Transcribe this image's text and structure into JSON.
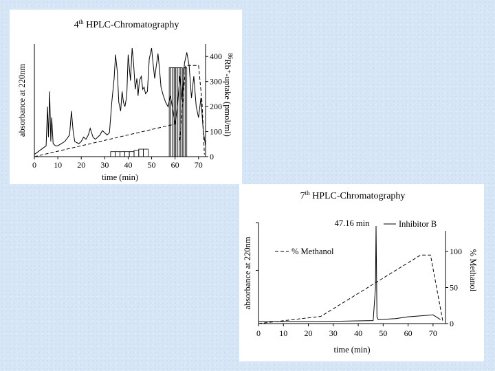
{
  "chart_data": [
    {
      "type": "line",
      "title_main": "HPLC-Chromatography",
      "title_sup": "th",
      "title_num": "4",
      "xlabel": "time (min)",
      "ylabel": "absorbance at  220nm",
      "y2label": "Rb⁺-uptake (pmol/ml)",
      "y2label_sup": "86",
      "xlim": [
        0,
        73
      ],
      "y2lim": [
        0,
        450
      ],
      "x_ticks": [
        "0",
        "10",
        "20",
        "30",
        "40",
        "50",
        "60",
        "70"
      ],
      "y2_ticks": [
        "0",
        "100",
        "200",
        "300",
        "400"
      ],
      "series": [
        {
          "role": "absorbance",
          "x": [
            0,
            5,
            5.6,
            6,
            6.5,
            7,
            7.4,
            8,
            9,
            10,
            13,
            15,
            15.8,
            16.5,
            17.2,
            18,
            19,
            20,
            21,
            22,
            23,
            23.8,
            25,
            26,
            27,
            28,
            29,
            30,
            31,
            32,
            33,
            34,
            34.6,
            35.4,
            36,
            36.8,
            37.4,
            38,
            38.6,
            39.4,
            40,
            41,
            41.7,
            42.3,
            43,
            43.7,
            44.2,
            44.8,
            45.6,
            46.2,
            46.8,
            47.4,
            48.2,
            49,
            50,
            50.5,
            51.3,
            52,
            52.7,
            53.4,
            54,
            55,
            56,
            57,
            58,
            59,
            60,
            61,
            62,
            63,
            64,
            65,
            66,
            67,
            68,
            69,
            70,
            71,
            72,
            73
          ],
          "y": [
            0.02,
            0.1,
            0.46,
            0.18,
            0.6,
            0.14,
            0.36,
            0.12,
            0.1,
            0.1,
            0.14,
            0.2,
            0.42,
            0.24,
            0.14,
            0.13,
            0.12,
            0.14,
            0.18,
            0.16,
            0.2,
            0.26,
            0.18,
            0.16,
            0.18,
            0.2,
            0.24,
            0.22,
            0.2,
            0.22,
            0.5,
            0.72,
            0.94,
            0.78,
            0.5,
            0.42,
            0.6,
            0.5,
            0.46,
            0.56,
            0.94,
            0.7,
            1.0,
            0.86,
            0.62,
            0.72,
            0.56,
            0.7,
            0.74,
            0.62,
            0.64,
            0.58,
            0.6,
            0.9,
            1.0,
            0.88,
            0.72,
            0.84,
            0.95,
            0.8,
            0.64,
            0.56,
            0.5,
            0.46,
            0.56,
            0.44,
            0.3,
            0.46,
            0.74,
            0.52,
            0.86,
            0.96,
            0.84,
            0.54,
            0.74,
            0.46,
            0.36,
            0.54,
            0.24,
            0.1
          ]
        },
        {
          "role": "baseline",
          "x": [
            0,
            60
          ],
          "y": [
            0.0,
            0.3
          ]
        },
        {
          "role": "gradient",
          "x": [
            62,
            64.5,
            66,
            70,
            71.5,
            72.5
          ],
          "y": [
            0.15,
            0.84,
            0.84,
            0.84,
            0.5,
            0.02
          ]
        }
      ],
      "uptake_bars": [
        {
          "x0": 32.5,
          "x1": 34.5,
          "value": 20
        },
        {
          "x0": 34.5,
          "x1": 36.5,
          "value": 20
        },
        {
          "x0": 36.5,
          "x1": 38.5,
          "value": 20
        },
        {
          "x0": 38.5,
          "x1": 40.5,
          "value": 20
        },
        {
          "x0": 40.5,
          "x1": 42.5,
          "value": 20
        },
        {
          "x0": 42.5,
          "x1": 44.5,
          "value": 25
        },
        {
          "x0": 44.5,
          "x1": 46.5,
          "value": 30
        },
        {
          "x0": 46.5,
          "x1": 48.5,
          "value": 30
        },
        {
          "x0": 57.5,
          "x1": 58.2,
          "value": 355
        },
        {
          "x0": 58.2,
          "x1": 58.9,
          "value": 355
        },
        {
          "x0": 58.9,
          "x1": 59.6,
          "value": 355
        },
        {
          "x0": 59.6,
          "x1": 60.3,
          "value": 355
        },
        {
          "x0": 60.3,
          "x1": 61.0,
          "value": 355
        },
        {
          "x0": 61.0,
          "x1": 61.7,
          "value": 355
        },
        {
          "x0": 61.7,
          "x1": 62.4,
          "value": 355
        },
        {
          "x0": 62.4,
          "x1": 63.1,
          "value": 355
        },
        {
          "x0": 63.6,
          "x1": 64.3,
          "value": 355
        },
        {
          "x0": 64.3,
          "x1": 65.0,
          "value": 355
        }
      ]
    },
    {
      "type": "line",
      "title_main": "HPLC-Chromatography",
      "title_sup": "th",
      "title_num": "7",
      "xlabel": "time (min)",
      "ylabel": "absorbance at  220nm",
      "y2label": "% Methanol",
      "xlim": [
        0,
        75
      ],
      "y2lim": [
        0,
        140
      ],
      "x_ticks": [
        "0",
        "10",
        "20",
        "30",
        "40",
        "50",
        "60",
        "70"
      ],
      "y2_ticks": [
        "0",
        "50",
        "100"
      ],
      "annotation": "47.16 min",
      "legend": [
        "Inhibitor B",
        "% Methanol"
      ],
      "series": [
        {
          "name": "Inhibitor B",
          "x": [
            0,
            25,
            46,
            46.9,
            47.16,
            47.5,
            48,
            55,
            60,
            65,
            70,
            73
          ],
          "y": [
            0.0,
            0.0,
            0.01,
            0.35,
            1.0,
            0.05,
            0.02,
            0.03,
            0.05,
            0.06,
            0.07,
            0.02
          ]
        },
        {
          "name": "% Methanol",
          "x": [
            0,
            25,
            65,
            69,
            74
          ],
          "y": [
            0,
            10,
            95,
            95,
            2
          ]
        }
      ]
    }
  ]
}
